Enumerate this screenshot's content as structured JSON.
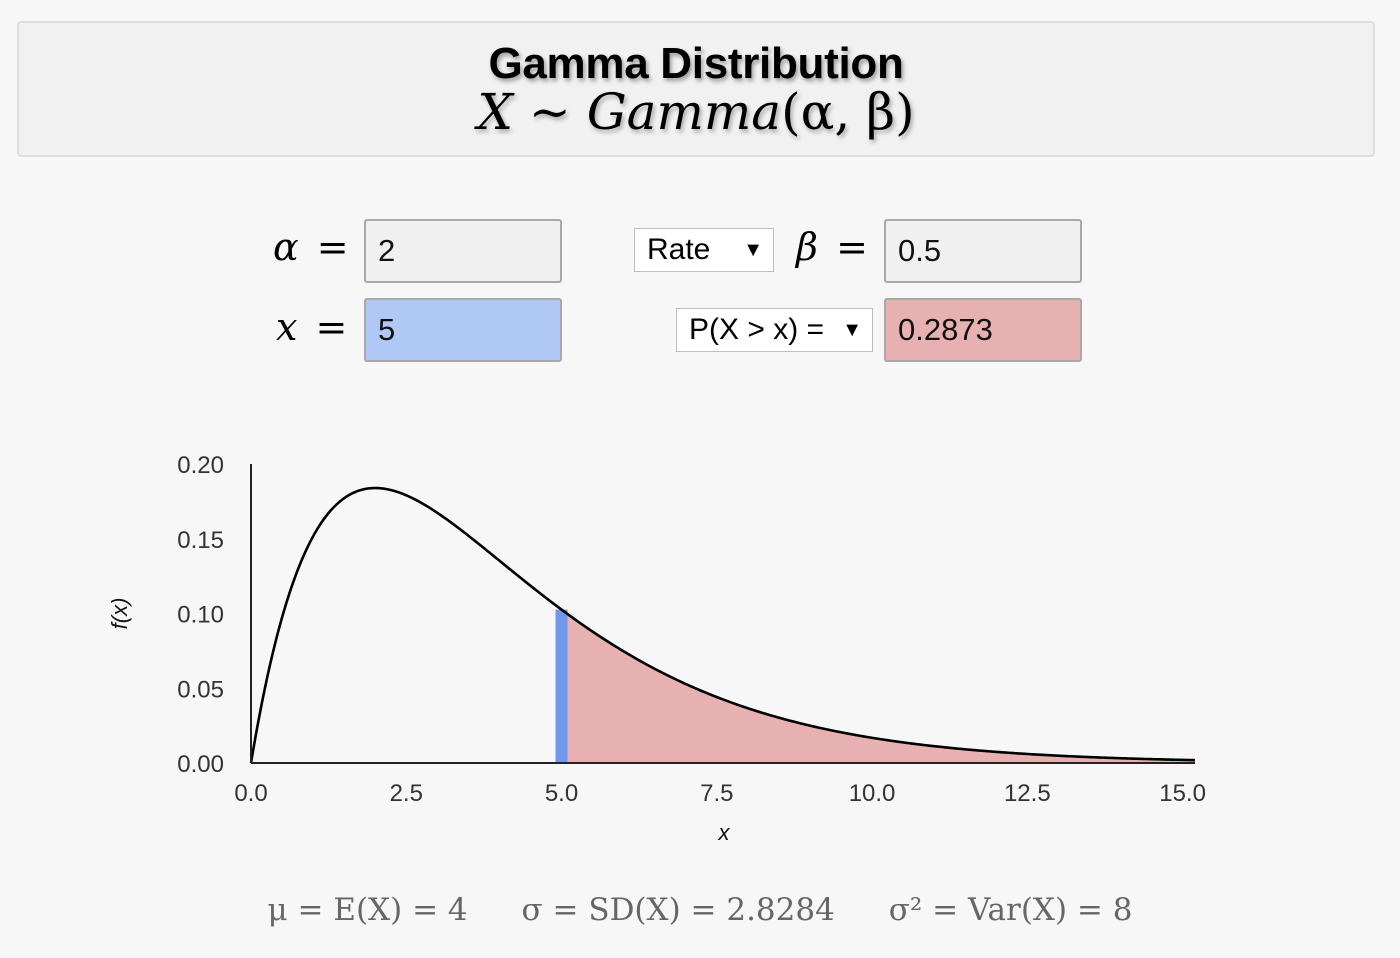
{
  "header": {
    "title": "Gamma Distribution",
    "subtitle_var": "X",
    "subtitle_rel": "~",
    "subtitle_fn": "Gamma",
    "subtitle_args": "(α, β)"
  },
  "params": {
    "alpha_symbol": "α",
    "alpha_value": "2",
    "x_symbol": "x",
    "x_value": "5",
    "beta_symbol": "β",
    "beta_value": "0.5",
    "equals": "=",
    "parametrization": "Rate",
    "prob_mode": "P(X > x) =",
    "prob_value": "0.2873",
    "dropdown_arrow": "▼"
  },
  "colors": {
    "x_field": "#afc8f5",
    "prob_field": "#e8b1b1",
    "x_marker": "#6f97ea",
    "shaded_area": "#e8b1b1",
    "curve": "#000000"
  },
  "chart_data": {
    "type": "area",
    "distribution": "gamma",
    "alpha": 2,
    "beta": 0.5,
    "parametrization": "rate",
    "x_marker": 5,
    "shaded_region": "x > 5",
    "xlabel": "x",
    "ylabel": "f(x)",
    "xlim": [
      0,
      15.2
    ],
    "ylim": [
      0,
      0.2
    ],
    "x_ticks": [
      "0.0",
      "2.5",
      "5.0",
      "7.5",
      "10.0",
      "12.5",
      "15.0"
    ],
    "y_ticks": [
      "0.00",
      "0.05",
      "0.10",
      "0.15",
      "0.20"
    ],
    "x_tick_values": [
      0,
      2.5,
      5,
      7.5,
      10,
      12.5,
      15
    ],
    "y_tick_values": [
      0,
      0.05,
      0.1,
      0.15,
      0.2
    ],
    "grid": false
  },
  "stats": {
    "mean": "μ = E(X) = 4",
    "sd": "σ = SD(X) = 2.8284",
    "var": "σ² = Var(X) = 8"
  }
}
